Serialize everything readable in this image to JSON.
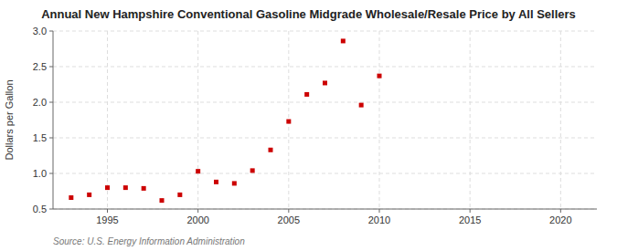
{
  "chart_data": {
    "type": "scatter",
    "title": "Annual New Hampshire Conventional Gasoline Midgrade Wholesale/Resale Price by All Sellers",
    "ylabel": "Dollars per Gallon",
    "source": "Source: U.S. Energy Information Administration",
    "x": [
      1993,
      1994,
      1995,
      1996,
      1997,
      1998,
      1999,
      2000,
      2001,
      2002,
      2003,
      2004,
      2005,
      2006,
      2007,
      2008,
      2009,
      2010
    ],
    "values": [
      0.66,
      0.7,
      0.8,
      0.8,
      0.79,
      0.62,
      0.7,
      1.03,
      0.88,
      0.86,
      1.04,
      1.33,
      1.73,
      2.11,
      2.27,
      2.86,
      1.96,
      2.37
    ],
    "color": "#cc0000",
    "marker": "square",
    "xlim": [
      1992,
      2022
    ],
    "ylim": [
      0.5,
      3.0
    ],
    "xticks": [
      1995,
      2000,
      2005,
      2010,
      2015,
      2020
    ],
    "yticks": [
      0.5,
      {
        "value": 1.0,
        "label": "1.0"
      },
      1.5,
      {
        "value": 2.0,
        "label": "2.0"
      },
      2.5,
      {
        "value": 3.0,
        "label": "3.0"
      }
    ],
    "grid": true
  }
}
